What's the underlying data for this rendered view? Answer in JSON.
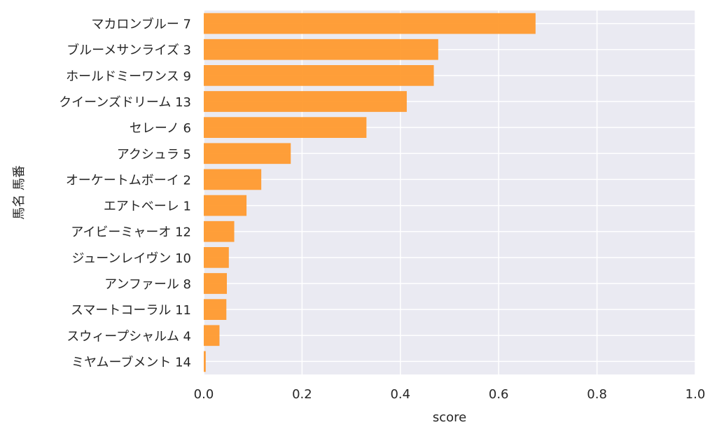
{
  "chart_data": {
    "type": "bar",
    "orientation": "horizontal",
    "categories": [
      "マカロンブルー 7",
      "ブルーメサンライズ 3",
      "ホールドミーワンス 9",
      "クイーンズドリーム 13",
      "セレーノ 6",
      "アクシュラ 5",
      "オーケートムボーイ 2",
      "エアトベーレ 1",
      "アイビーミャーオ 12",
      "ジューンレイヴン 10",
      "アンファール 8",
      "スマートコーラル 11",
      "スウィープシャルム 4",
      "ミヤムーブメント 14"
    ],
    "values": [
      0.675,
      0.477,
      0.468,
      0.413,
      0.331,
      0.177,
      0.117,
      0.087,
      0.062,
      0.051,
      0.047,
      0.046,
      0.032,
      0.004
    ],
    "xlabel": "score",
    "ylabel": "馬名 馬番",
    "xlim": [
      0,
      1.0
    ],
    "xticks": [
      "0.0",
      "0.2",
      "0.4",
      "0.6",
      "0.8",
      "1.0"
    ],
    "grid": true,
    "colors": {
      "bar": "#ff9a2e",
      "background": "#eaeaf2",
      "grid": "#ffffff"
    }
  }
}
